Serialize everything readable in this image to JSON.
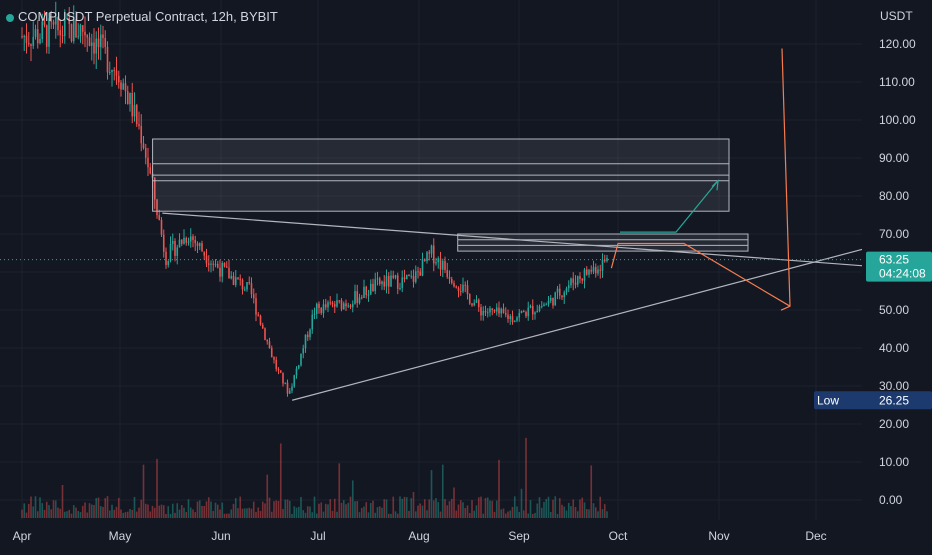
{
  "symbol_title": "COMPUSDT Perpetual Contract, 12h, BYBIT",
  "currency": "USDT",
  "colors": {
    "background": "#131722",
    "up": "#26a69a",
    "down": "#ef5350",
    "accent_label": "#26a69a",
    "low_label": "#1c3a6e",
    "drawing": "#b2b5be",
    "orange_path": "#f57c4f",
    "green_path": "#26a69a"
  },
  "price_label": {
    "value": "63.25",
    "countdown": "04:24:08"
  },
  "low_label": {
    "text": "Low",
    "value": "26.25"
  },
  "chart_data": {
    "type": "candlestick",
    "title": "COMPUSDT Perpetual Contract, 12h, BYBIT",
    "y_axis": {
      "unit": "USDT",
      "ticks": [
        "120.00",
        "110.00",
        "100.00",
        "90.00",
        "80.00",
        "70.00",
        "60.00",
        "50.00",
        "40.00",
        "30.00",
        "20.00",
        "10.00",
        "0.00"
      ],
      "range": [
        0,
        125
      ]
    },
    "x_axis": {
      "ticks": [
        "Apr",
        "May",
        "Jun",
        "Jul",
        "Aug",
        "Sep",
        "Oct",
        "Nov",
        "Dec"
      ]
    },
    "last_price": 63.25,
    "low": 26.25,
    "price_path_anchors": [
      {
        "date": "Apr 1",
        "price": 122
      },
      {
        "date": "Apr 20",
        "price": 124
      },
      {
        "date": "May 1",
        "price": 112
      },
      {
        "date": "May 8",
        "price": 95
      },
      {
        "date": "May 12",
        "price": 78
      },
      {
        "date": "May 15",
        "price": 64
      },
      {
        "date": "May 22",
        "price": 70
      },
      {
        "date": "May 30",
        "price": 62
      },
      {
        "date": "Jun 10",
        "price": 55
      },
      {
        "date": "Jun 18",
        "price": 35
      },
      {
        "date": "Jun 22",
        "price": 28
      },
      {
        "date": "Jun 30",
        "price": 50
      },
      {
        "date": "Jul 10",
        "price": 52
      },
      {
        "date": "Jul 20",
        "price": 57
      },
      {
        "date": "Jul 30",
        "price": 58
      },
      {
        "date": "Aug 5",
        "price": 65
      },
      {
        "date": "Aug 10",
        "price": 60
      },
      {
        "date": "Aug 20",
        "price": 50
      },
      {
        "date": "Aug 30",
        "price": 48
      },
      {
        "date": "Sep 10",
        "price": 52
      },
      {
        "date": "Sep 18",
        "price": 58
      },
      {
        "date": "Sep 28",
        "price": 63.25
      }
    ],
    "resistance_zones": [
      {
        "from": 76,
        "to": 95
      },
      {
        "from": 65.5,
        "to": 70
      }
    ]
  }
}
